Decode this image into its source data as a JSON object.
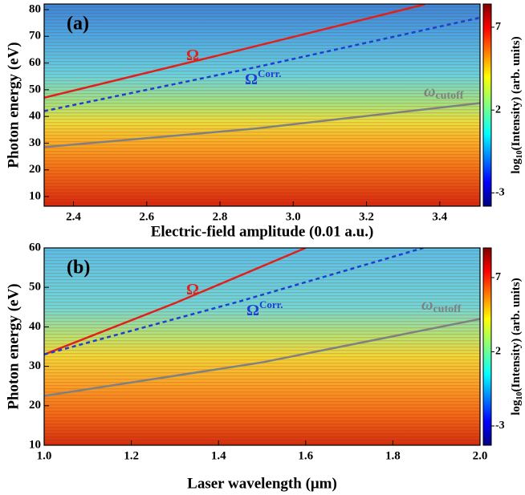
{
  "chart_data": [
    {
      "type": "heatmap",
      "panel_label": "(a)",
      "xlabel": "Electric-field amplitude (0.01 a.u.)",
      "ylabel": "Photon energy (eV)",
      "xlim": [
        2.32,
        3.51
      ],
      "ylim": [
        6.4,
        82.1
      ],
      "xticks": [
        2.4,
        2.6,
        2.8,
        {
          "value": 3,
          "label": "3.0"
        },
        3.2,
        3.4
      ],
      "yticks": [
        10,
        20,
        30,
        40,
        50,
        60,
        70,
        80
      ],
      "series": [
        {
          "name": "Ω",
          "color": "#e0201c",
          "style": "solid",
          "x": [
            2.32,
            2.8,
            3.36
          ],
          "values": [
            47,
            63,
            82
          ]
        },
        {
          "name": "Ω",
          "name_sup": "Corr.",
          "color": "#1f3fd0",
          "style": "dashed",
          "x": [
            2.32,
            2.9,
            3.51
          ],
          "values": [
            42,
            58.5,
            77
          ]
        },
        {
          "name": "ω",
          "name_sub": "cutoff",
          "color": "#808080",
          "style": "solid",
          "x": [
            2.32,
            2.9,
            3.51
          ],
          "values": [
            28.5,
            35.5,
            45
          ]
        }
      ],
      "colorbar": {
        "lim": [
          -3.8,
          8.4
        ],
        "ticks": [
          -3,
          2,
          7
        ],
        "label": "log",
        "label_sub": "10",
        "label_rest": "(Intensity) (arb. units)"
      }
    },
    {
      "type": "heatmap",
      "panel_label": "(b)",
      "xlabel": "Laser wavelength  (μm)",
      "ylabel": "Photon energy (eV)",
      "xlim": [
        1,
        2
      ],
      "ylim": [
        10,
        60
      ],
      "xticks": [
        {
          "value": 1,
          "label": "1.0"
        },
        1.2,
        1.4,
        1.6,
        1.8,
        {
          "value": 2,
          "label": "2.0"
        }
      ],
      "yticks": [
        10,
        20,
        30,
        40,
        50,
        60
      ],
      "series": [
        {
          "name": "Ω",
          "color": "#e0201c",
          "style": "solid",
          "x": [
            1,
            1.3,
            1.6
          ],
          "values": [
            33,
            46,
            60
          ]
        },
        {
          "name": "Ω",
          "name_sup": "Corr.",
          "color": "#1f3fd0",
          "style": "dashed",
          "x": [
            1,
            1.45,
            1.87
          ],
          "values": [
            33,
            46.5,
            60
          ]
        },
        {
          "name": "ω",
          "name_sub": "cutoff",
          "color": "#808080",
          "style": "solid",
          "x": [
            1,
            1.5,
            2
          ],
          "values": [
            22.5,
            31,
            42
          ]
        }
      ],
      "colorbar": {
        "lim": [
          -4.3,
          9
        ],
        "ticks": [
          -3,
          2,
          7
        ],
        "label": "log",
        "label_sub": "10",
        "label_rest": "(Intensity) (arb. units)"
      }
    }
  ]
}
